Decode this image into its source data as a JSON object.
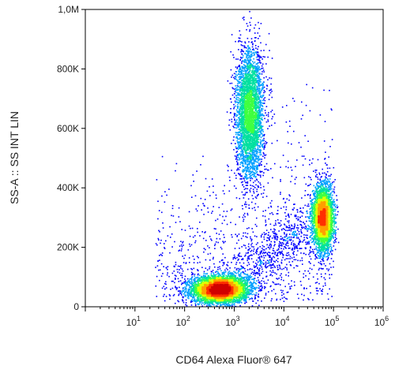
{
  "chart_data": {
    "type": "scatter",
    "style": "flow-cytometry density dot plot",
    "xlabel": "CD64 Alexa Fluor® 647",
    "ylabel": "SS-A :: SS INT LIN",
    "x_scale": "log",
    "xlim": [
      1,
      1000000
    ],
    "x_ticks": [
      {
        "value": 10,
        "base": "10",
        "exp": "1"
      },
      {
        "value": 100,
        "base": "10",
        "exp": "2"
      },
      {
        "value": 1000,
        "base": "10",
        "exp": "3"
      },
      {
        "value": 10000,
        "base": "10",
        "exp": "4"
      },
      {
        "value": 100000,
        "base": "10",
        "exp": "5"
      },
      {
        "value": 1000000,
        "base": "10",
        "exp": "6"
      }
    ],
    "y_scale": "linear",
    "ylim": [
      0,
      1000000
    ],
    "y_ticks": [
      {
        "value": 0,
        "label": "0"
      },
      {
        "value": 200000,
        "label": "200K"
      },
      {
        "value": 400000,
        "label": "400K"
      },
      {
        "value": 600000,
        "label": "600K"
      },
      {
        "value": 800000,
        "label": "800K"
      },
      {
        "value": 1000000,
        "label": "1,0M"
      }
    ],
    "grid": false,
    "colormap": [
      "#0000ff",
      "#00a0ff",
      "#00e0a0",
      "#40ff40",
      "#e0ff00",
      "#ffa000",
      "#ff3000",
      "#d00000"
    ],
    "populations": [
      {
        "center_x": 500,
        "center_y": 60000,
        "spread_log_x": 0.28,
        "spread_y": 22000,
        "density": "high"
      },
      {
        "center_x": 2000,
        "center_y": 650000,
        "spread_log_x": 0.14,
        "spread_y": 110000,
        "density": "medium"
      },
      {
        "center_x": 60000,
        "center_y": 300000,
        "spread_log_x": 0.1,
        "spread_y": 55000,
        "density": "medium"
      }
    ]
  }
}
